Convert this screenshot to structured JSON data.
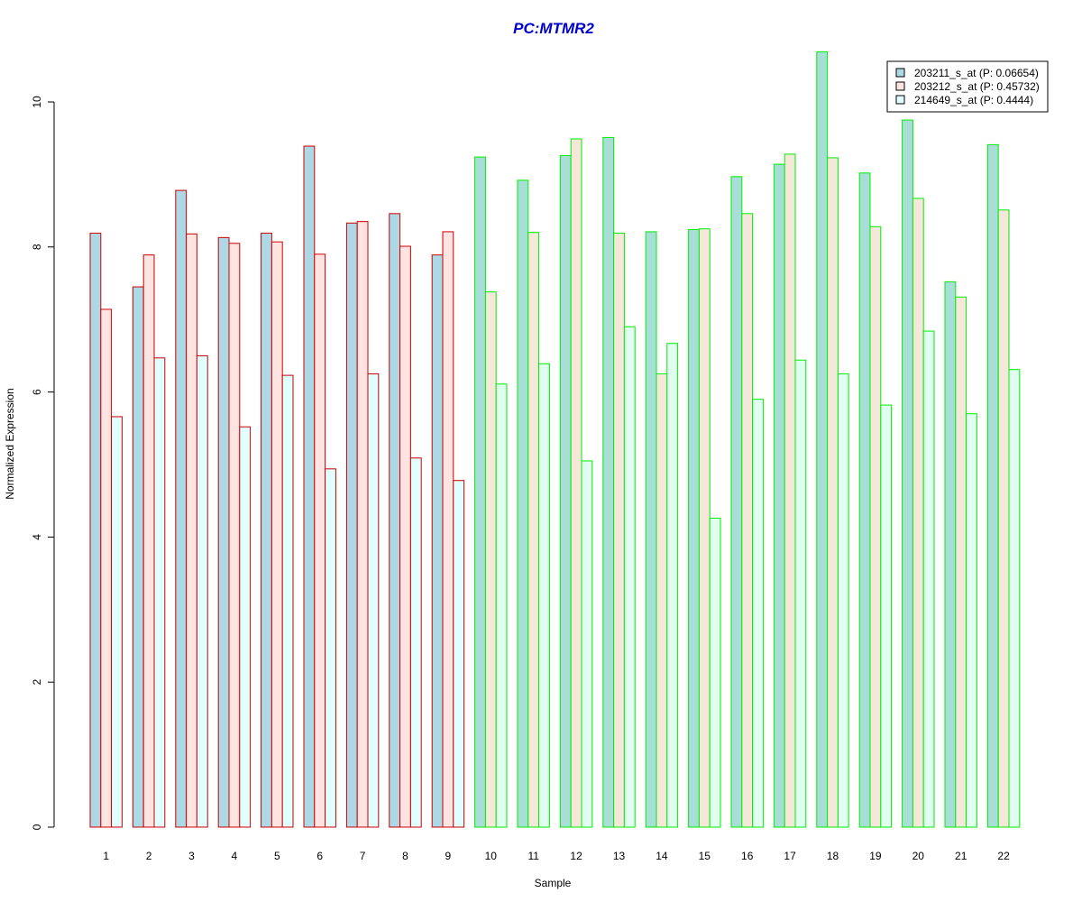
{
  "chart_data": {
    "type": "bar",
    "title": "PC:MTMR2",
    "xlabel": "Sample",
    "ylabel": "Normalized Expression",
    "ylim": [
      0,
      10.7
    ],
    "yticks": [
      0,
      2,
      4,
      6,
      8,
      10
    ],
    "grid": false,
    "legend_position": "top-right",
    "categories": [
      "1",
      "2",
      "3",
      "4",
      "5",
      "6",
      "7",
      "8",
      "9",
      "10",
      "11",
      "12",
      "13",
      "14",
      "15",
      "16",
      "17",
      "18",
      "19",
      "20",
      "21",
      "22"
    ],
    "series": [
      {
        "name": "203211_s_at (P: 0.06654)",
        "values": [
          8.19,
          7.45,
          8.78,
          8.13,
          8.19,
          9.39,
          8.33,
          8.46,
          7.89,
          9.24,
          8.92,
          9.26,
          9.51,
          8.21,
          8.24,
          8.97,
          9.14,
          10.69,
          9.02,
          9.75,
          7.52,
          9.41
        ]
      },
      {
        "name": "203212_s_at (P: 0.45732)",
        "values": [
          7.14,
          7.89,
          8.18,
          8.05,
          8.07,
          7.9,
          8.35,
          8.01,
          8.21,
          7.38,
          8.2,
          9.49,
          8.19,
          6.25,
          8.25,
          8.46,
          9.28,
          9.23,
          8.28,
          8.67,
          7.31,
          8.51
        ]
      },
      {
        "name": "214649_s_at (P: 0.4444)",
        "values": [
          5.66,
          6.47,
          6.5,
          5.52,
          6.23,
          4.94,
          6.25,
          5.09,
          4.78,
          6.11,
          6.39,
          5.05,
          6.9,
          6.67,
          4.26,
          5.9,
          6.44,
          6.25,
          5.82,
          6.84,
          5.7,
          6.31
        ]
      }
    ],
    "groups": [
      {
        "categories": [
          "1",
          "2",
          "3",
          "4",
          "5",
          "6",
          "7",
          "8",
          "9"
        ],
        "border_color": "#CC0000"
      },
      {
        "categories": [
          "10",
          "11",
          "12",
          "13",
          "14",
          "15",
          "16",
          "17",
          "18",
          "19",
          "20",
          "21",
          "22"
        ],
        "border_color": "#00EE00"
      }
    ],
    "colors": {
      "title": "#0000CC",
      "group1_series": [
        "#ADD8E6",
        "#FFE4E1",
        "#E0FFFF"
      ],
      "group2_series": [
        "#A8DED8",
        "#F5E8DA",
        "#E0FFF0"
      ],
      "legend_swatches": [
        "#ADD8E6",
        "#FFE4E1",
        "#E0FFFF"
      ]
    }
  }
}
